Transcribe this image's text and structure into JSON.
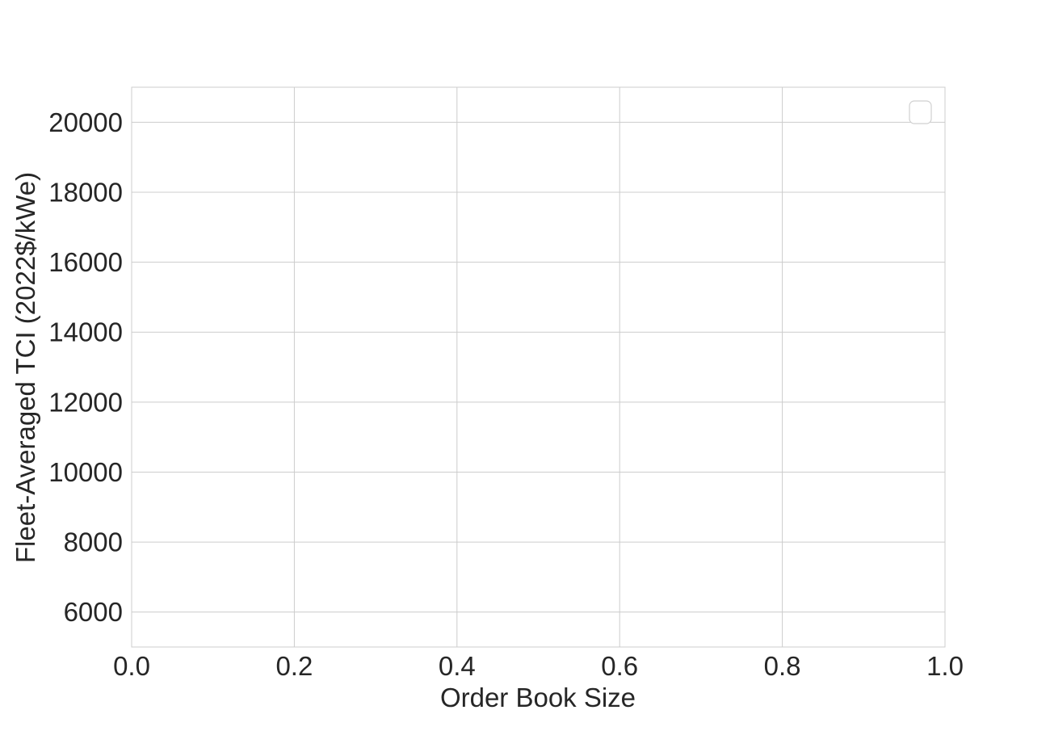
{
  "chart_data": {
    "type": "line",
    "title": "",
    "xlabel": "Order Book Size",
    "ylabel": "Fleet-Averaged TCI (2022$/kWe)",
    "xlim": [
      0.0,
      1.0
    ],
    "ylim": [
      5000,
      21000
    ],
    "x_ticks": [
      "0.0",
      "0.2",
      "0.4",
      "0.6",
      "0.8",
      "1.0"
    ],
    "x_tick_values": [
      0.0,
      0.2,
      0.4,
      0.6,
      0.8,
      1.0
    ],
    "y_ticks": [
      "6000",
      "8000",
      "10000",
      "12000",
      "14000",
      "16000",
      "18000",
      "20000"
    ],
    "y_tick_values": [
      6000,
      8000,
      10000,
      12000,
      14000,
      16000,
      18000,
      20000
    ],
    "series": [],
    "grid": true,
    "legend": {
      "placement": "top-right",
      "entries": []
    },
    "colors": {
      "grid": "#cccccc",
      "spine": "#cccccc",
      "text": "#262626",
      "background": "#ffffff",
      "legend_border": "#d0d0d0"
    }
  }
}
